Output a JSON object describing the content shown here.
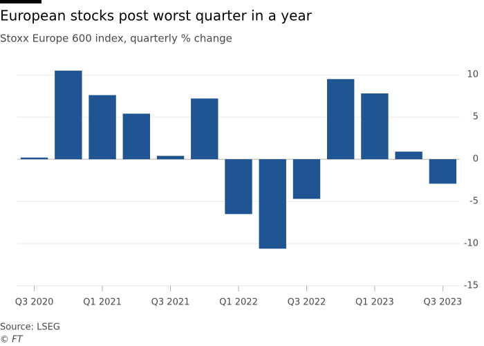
{
  "chart_data": {
    "type": "bar",
    "title": "European stocks post worst quarter in a year",
    "subtitle": "Stoxx Europe 600 index, quarterly % change",
    "source": "Source: LSEG",
    "credit": "© FT",
    "categories": [
      "Q3 2020",
      null,
      "Q1 2021",
      null,
      "Q3 2021",
      null,
      "Q1 2022",
      null,
      "Q3 2022",
      null,
      "Q1 2023",
      null,
      "Q3 2023"
    ],
    "values": [
      0.2,
      10.5,
      7.6,
      5.4,
      0.4,
      7.2,
      -6.5,
      -10.6,
      -4.7,
      9.5,
      7.8,
      0.9,
      -2.9
    ],
    "color": "#1f5592",
    "ylim": [
      -15,
      11
    ],
    "yticks": [
      10,
      5,
      0,
      -5,
      -10,
      -15
    ],
    "grid": true
  }
}
